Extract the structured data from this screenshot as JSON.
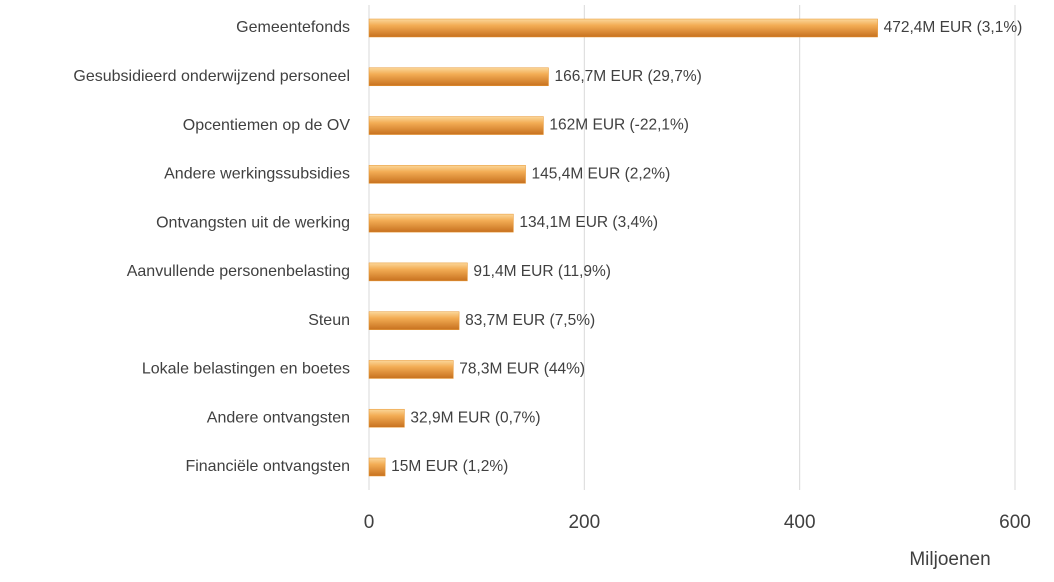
{
  "chart_data": {
    "type": "barh",
    "x_label": "Miljoenen",
    "categories": [
      "Gemeentefonds",
      "Gesubsidieerd onderwijzend personeel",
      "Opcentiemen op de OV",
      "Andere werkingssubsidies",
      "Ontvangsten uit de werking",
      "Aanvullende personenbelasting",
      "Steun",
      "Lokale belastingen en boetes",
      "Andere ontvangsten",
      "Financiële ontvangsten"
    ],
    "values": [
      472.4,
      166.7,
      162,
      145.4,
      134.1,
      91.4,
      83.7,
      78.3,
      32.9,
      15
    ],
    "value_labels": [
      "472,4M EUR (3,1%)",
      "166,7M EUR (29,7%)",
      "162M EUR (-22,1%)",
      "145,4M EUR (2,2%)",
      "134,1M EUR (3,4%)",
      "91,4M EUR (11,9%)",
      "83,7M EUR (7,5%)",
      "78,3M EUR (44%)",
      "32,9M EUR (0,7%)",
      "15M EUR (1,2%)"
    ],
    "color": "#e8952f",
    "xlim": [
      0,
      600
    ],
    "xticks": [
      0,
      200,
      400,
      600
    ],
    "grid": true
  }
}
